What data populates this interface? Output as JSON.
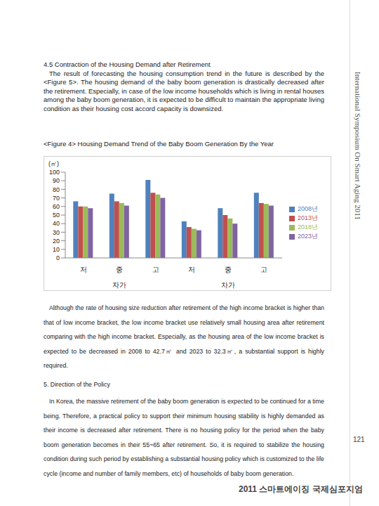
{
  "section_title": "4.5 Contraction of the Housing Demand after Retirement",
  "paragraph_1": "The result of forecasting the housing consumption trend in the future is described by the <Figure 5>. The housing demand of the baby boom generation is drastically decreased after the retirement. Especially, in case of the low income households which is living in rental houses among the baby boom generation, it is expected to be difficult to maintain the appropriate living condition as their housing cost accord capacity is downsized.",
  "figure_caption": "<Figure 4> Housing Demand Trend of the Baby Boom Generation By the Year",
  "chart_data": {
    "type": "bar",
    "y_label": "(㎡)",
    "categories": [
      "저",
      "중",
      "고",
      "저",
      "중",
      "고"
    ],
    "group_labels": [
      "자가",
      "차가"
    ],
    "series": [
      {
        "name": "2008년",
        "color": "#4f81bd",
        "values": [
          66,
          75,
          91,
          42.7,
          58,
          76
        ]
      },
      {
        "name": "2013년",
        "color": "#c0504d",
        "values": [
          60,
          66,
          76,
          36,
          50,
          64
        ]
      },
      {
        "name": "2018년",
        "color": "#9bbb59",
        "values": [
          60,
          64,
          74,
          34,
          46,
          63
        ]
      },
      {
        "name": "2023년",
        "color": "#8064a2",
        "values": [
          58,
          61,
          70,
          32.3,
          40,
          61
        ]
      }
    ],
    "ylim": [
      0,
      100
    ],
    "yticks": [
      0,
      10,
      20,
      30,
      40,
      50,
      60,
      70,
      80,
      90,
      100
    ],
    "grid": false,
    "legend": "right"
  },
  "paragraph_2": "Although the rate of housing size reduction after retirement of the high income bracket is higher than that of low income bracket, the low income bracket use relatively small housing area after retirement comparing with the high income bracket. Especially, as the housing area of the low income bracket is expected to be decreased in 2008 to 42.7㎡ and 2023 to 32.3㎡, a substantial support is highly required.",
  "section_2_title": "5. Direction of the Policy",
  "paragraph_3": "In Korea, the massive retirement of the baby boom generation is expected to be continued for a time being. Therefore, a practical policy to support their minimum housing stability is highly demanded as their income is decreased after retirement. There is no housing policy for the period when the baby boom generation becomes in their 55~65 after retirement. So, it is required to stabilize the housing condition during such period by establishing a substantial housing policy which is customized to the life cycle (income and number of family members, etc) of households of baby boom generation.",
  "side_text": "International Symposium On Smart Aging 2011",
  "page_number": "121",
  "footer": "2011 스마트에이징 국제심포지엄"
}
